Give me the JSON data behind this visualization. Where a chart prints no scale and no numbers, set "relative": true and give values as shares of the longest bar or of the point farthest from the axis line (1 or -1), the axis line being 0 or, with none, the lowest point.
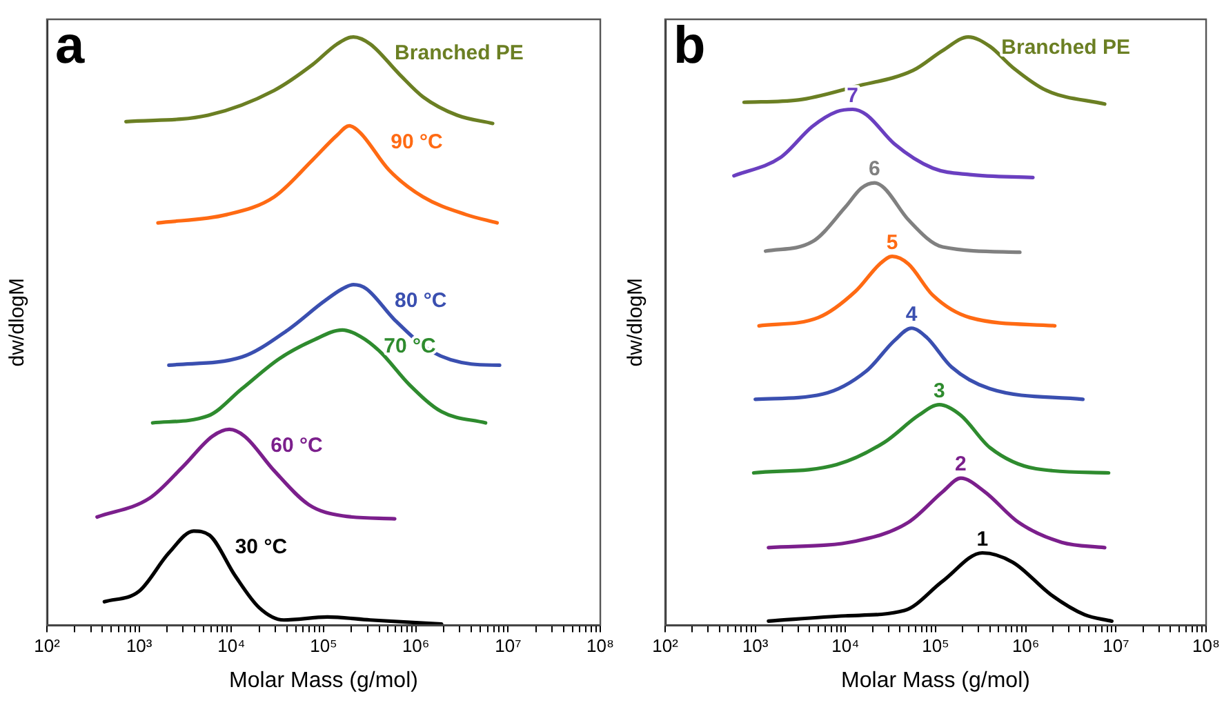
{
  "chart_data": [
    {
      "type": "line",
      "relative": true,
      "log": "x",
      "xlabel": "Molar Mass (g/mol)",
      "ylabel": "dw/dlogM",
      "annotations": [
        "a"
      ],
      "xlim": [
        100,
        100000000
      ],
      "xticks": [
        {
          "value": 100,
          "label": "10²"
        },
        {
          "value": 200,
          "label": null
        },
        {
          "value": 300,
          "label": null
        },
        {
          "value": 400,
          "label": null
        },
        {
          "value": 500,
          "label": null
        },
        {
          "value": 600,
          "label": null
        },
        {
          "value": 700,
          "label": null
        },
        {
          "value": 800,
          "label": null
        },
        {
          "value": 900,
          "label": null
        },
        {
          "value": 1000,
          "label": "10³"
        },
        {
          "value": 2000,
          "label": null
        },
        {
          "value": 3000,
          "label": null
        },
        {
          "value": 4000,
          "label": null
        },
        {
          "value": 5000,
          "label": null
        },
        {
          "value": 6000,
          "label": null
        },
        {
          "value": 7000,
          "label": null
        },
        {
          "value": 8000,
          "label": null
        },
        {
          "value": 9000,
          "label": null
        },
        {
          "value": 10000,
          "label": "10⁴"
        },
        {
          "value": 20000,
          "label": null
        },
        {
          "value": 30000,
          "label": null
        },
        {
          "value": 40000,
          "label": null
        },
        {
          "value": 50000,
          "label": null
        },
        {
          "value": 60000,
          "label": null
        },
        {
          "value": 70000,
          "label": null
        },
        {
          "value": 80000,
          "label": null
        },
        {
          "value": 90000,
          "label": null
        },
        {
          "value": 100000,
          "label": "10⁵"
        },
        {
          "value": 200000,
          "label": null
        },
        {
          "value": 300000,
          "label": null
        },
        {
          "value": 400000,
          "label": null
        },
        {
          "value": 500000,
          "label": null
        },
        {
          "value": 600000,
          "label": null
        },
        {
          "value": 700000,
          "label": null
        },
        {
          "value": 800000,
          "label": null
        },
        {
          "value": 900000,
          "label": null
        },
        {
          "value": 1000000,
          "label": "10⁶"
        },
        {
          "value": 2000000,
          "label": null
        },
        {
          "value": 3000000,
          "label": null
        },
        {
          "value": 4000000,
          "label": null
        },
        {
          "value": 5000000,
          "label": null
        },
        {
          "value": 6000000,
          "label": null
        },
        {
          "value": 7000000,
          "label": null
        },
        {
          "value": 8000000,
          "label": null
        },
        {
          "value": 9000000,
          "label": null
        },
        {
          "value": 10000000,
          "label": "10⁷"
        },
        {
          "value": 20000000,
          "label": null
        },
        {
          "value": 30000000,
          "label": null
        },
        {
          "value": 40000000,
          "label": null
        },
        {
          "value": 50000000,
          "label": null
        },
        {
          "value": 60000000,
          "label": null
        },
        {
          "value": 70000000,
          "label": null
        },
        {
          "value": 80000000,
          "label": null
        },
        {
          "value": 90000000,
          "label": null
        },
        {
          "value": 100000000,
          "label": "10⁸"
        }
      ],
      "series": [
        {
          "name": "Branched PE",
          "color": "#6b7f23",
          "x": [
            720,
            5600,
            29000,
            76000,
            140000,
            210000,
            320000,
            660000,
            1200000,
            2800000,
            6800000
          ],
          "values": [
            0.856,
            0.867,
            0.909,
            0.953,
            0.988,
            1.0,
            0.988,
            0.937,
            0.898,
            0.867,
            0.853
          ]
        },
        {
          "name": "90 °C",
          "color": "#ff6a13",
          "x": [
            1600,
            8900,
            29000,
            76000,
            140000,
            190000,
            250000,
            510000,
            1200000,
            3500000,
            7600000
          ],
          "values": [
            0.684,
            0.698,
            0.728,
            0.791,
            0.833,
            0.849,
            0.837,
            0.774,
            0.728,
            0.698,
            0.684
          ]
        },
        {
          "name": "80 °C",
          "color": "#3a4fb0",
          "x": [
            2100,
            13000,
            41000,
            98000,
            160000,
            210000,
            290000,
            590000,
            1500000,
            4000000,
            8100000
          ],
          "values": [
            0.442,
            0.456,
            0.502,
            0.549,
            0.572,
            0.579,
            0.572,
            0.519,
            0.465,
            0.444,
            0.442
          ]
        },
        {
          "name": "70 °C",
          "color": "#2e8b2e",
          "x": [
            1400,
            5600,
            13000,
            33000,
            76000,
            160000,
            250000,
            410000,
            850000,
            1900000,
            5700000
          ],
          "values": [
            0.344,
            0.356,
            0.402,
            0.453,
            0.484,
            0.502,
            0.491,
            0.465,
            0.409,
            0.363,
            0.344
          ]
        },
        {
          "name": "60 °C",
          "color": "#7b1f8c",
          "x": [
            350,
            1300,
            3000,
            6200,
            9500,
            14000,
            29000,
            69000,
            160000,
            590000
          ],
          "values": [
            0.184,
            0.216,
            0.27,
            0.321,
            0.333,
            0.321,
            0.263,
            0.205,
            0.186,
            0.181
          ]
        },
        {
          "name": "30 °C",
          "color": "#000000",
          "x": [
            420,
            1000,
            2100,
            3900,
            5800,
            11000,
            20000,
            37000,
            110000,
            320000,
            1900000
          ],
          "values": [
            0.04,
            0.058,
            0.123,
            0.16,
            0.153,
            0.084,
            0.03,
            0.009,
            0.014,
            0.009,
            0.002
          ]
        }
      ]
    },
    {
      "type": "line",
      "relative": true,
      "log": "x",
      "xlabel": "Molar Mass (g/mol)",
      "ylabel": "dw/dlogM",
      "annotations": [
        "b"
      ],
      "xlim": [
        100,
        100000000
      ],
      "xticks": [
        {
          "value": 100,
          "label": "10²"
        },
        {
          "value": 200,
          "label": null
        },
        {
          "value": 300,
          "label": null
        },
        {
          "value": 400,
          "label": null
        },
        {
          "value": 500,
          "label": null
        },
        {
          "value": 600,
          "label": null
        },
        {
          "value": 700,
          "label": null
        },
        {
          "value": 800,
          "label": null
        },
        {
          "value": 900,
          "label": null
        },
        {
          "value": 1000,
          "label": "10³"
        },
        {
          "value": 2000,
          "label": null
        },
        {
          "value": 3000,
          "label": null
        },
        {
          "value": 4000,
          "label": null
        },
        {
          "value": 5000,
          "label": null
        },
        {
          "value": 6000,
          "label": null
        },
        {
          "value": 7000,
          "label": null
        },
        {
          "value": 8000,
          "label": null
        },
        {
          "value": 9000,
          "label": null
        },
        {
          "value": 10000,
          "label": "10⁴"
        },
        {
          "value": 20000,
          "label": null
        },
        {
          "value": 30000,
          "label": null
        },
        {
          "value": 40000,
          "label": null
        },
        {
          "value": 50000,
          "label": null
        },
        {
          "value": 60000,
          "label": null
        },
        {
          "value": 70000,
          "label": null
        },
        {
          "value": 80000,
          "label": null
        },
        {
          "value": 90000,
          "label": null
        },
        {
          "value": 100000,
          "label": "10⁵"
        },
        {
          "value": 200000,
          "label": null
        },
        {
          "value": 300000,
          "label": null
        },
        {
          "value": 400000,
          "label": null
        },
        {
          "value": 500000,
          "label": null
        },
        {
          "value": 600000,
          "label": null
        },
        {
          "value": 700000,
          "label": null
        },
        {
          "value": 800000,
          "label": null
        },
        {
          "value": 900000,
          "label": null
        },
        {
          "value": 1000000,
          "label": "10⁶"
        },
        {
          "value": 2000000,
          "label": null
        },
        {
          "value": 3000000,
          "label": null
        },
        {
          "value": 4000000,
          "label": null
        },
        {
          "value": 5000000,
          "label": null
        },
        {
          "value": 6000000,
          "label": null
        },
        {
          "value": 7000000,
          "label": null
        },
        {
          "value": 8000000,
          "label": null
        },
        {
          "value": 9000000,
          "label": null
        },
        {
          "value": 10000000,
          "label": "10⁷"
        },
        {
          "value": 20000000,
          "label": null
        },
        {
          "value": 30000000,
          "label": null
        },
        {
          "value": 40000000,
          "label": null
        },
        {
          "value": 50000000,
          "label": null
        },
        {
          "value": 60000000,
          "label": null
        },
        {
          "value": 70000000,
          "label": null
        },
        {
          "value": 80000000,
          "label": null
        },
        {
          "value": 90000000,
          "label": null
        },
        {
          "value": 100000000,
          "label": "10⁸"
        }
      ],
      "series": [
        {
          "name": "Branched PE",
          "color": "#6b7f23",
          "x": [
            750,
            3000,
            13000,
            56000,
            120000,
            230000,
            400000,
            720000,
            1700000,
            7500000
          ],
          "values": [
            0.889,
            0.893,
            0.916,
            0.943,
            0.977,
            1.0,
            0.984,
            0.948,
            0.909,
            0.886
          ]
        },
        {
          "name": "7",
          "color": "#6a3fc0",
          "x": [
            580,
            1900,
            4300,
            8000,
            12000,
            17000,
            35000,
            93000,
            240000,
            1200000
          ],
          "values": [
            0.764,
            0.795,
            0.848,
            0.873,
            0.877,
            0.868,
            0.818,
            0.777,
            0.766,
            0.761
          ]
        },
        {
          "name": "6",
          "color": "#808080",
          "x": [
            1300,
            4300,
            10000,
            15000,
            21000,
            27000,
            50000,
            120000,
            860000
          ],
          "values": [
            0.636,
            0.652,
            0.711,
            0.743,
            0.752,
            0.743,
            0.689,
            0.643,
            0.634
          ]
        },
        {
          "name": "5",
          "color": "#ff6a13",
          "x": [
            1100,
            5000,
            13000,
            24000,
            33000,
            50000,
            93000,
            240000,
            2100000
          ],
          "values": [
            0.509,
            0.523,
            0.568,
            0.614,
            0.627,
            0.614,
            0.561,
            0.523,
            0.509
          ]
        },
        {
          "name": "4",
          "color": "#3a4fb0",
          "x": [
            1000,
            5600,
            17000,
            35000,
            54000,
            80000,
            150000,
            400000,
            4300000
          ],
          "values": [
            0.384,
            0.393,
            0.432,
            0.484,
            0.505,
            0.489,
            0.439,
            0.402,
            0.384
          ]
        },
        {
          "name": "3",
          "color": "#2e8b2e",
          "x": [
            960,
            8000,
            27000,
            65000,
            110000,
            190000,
            400000,
            1300000,
            8300000
          ],
          "values": [
            0.259,
            0.273,
            0.311,
            0.357,
            0.375,
            0.357,
            0.302,
            0.266,
            0.259
          ]
        },
        {
          "name": "2",
          "color": "#7b1f8c",
          "x": [
            1400,
            13000,
            50000,
            120000,
            190000,
            350000,
            830000,
            2500000,
            7500000
          ],
          "values": [
            0.132,
            0.143,
            0.175,
            0.227,
            0.25,
            0.227,
            0.175,
            0.141,
            0.132
          ]
        },
        {
          "name": "1",
          "color": "#000000",
          "x": [
            1400,
            10000,
            45000,
            120000,
            330000,
            720000,
            1900000,
            4500000,
            9000000
          ],
          "values": [
            0.007,
            0.016,
            0.025,
            0.075,
            0.123,
            0.107,
            0.052,
            0.018,
            0.007
          ]
        }
      ]
    }
  ]
}
